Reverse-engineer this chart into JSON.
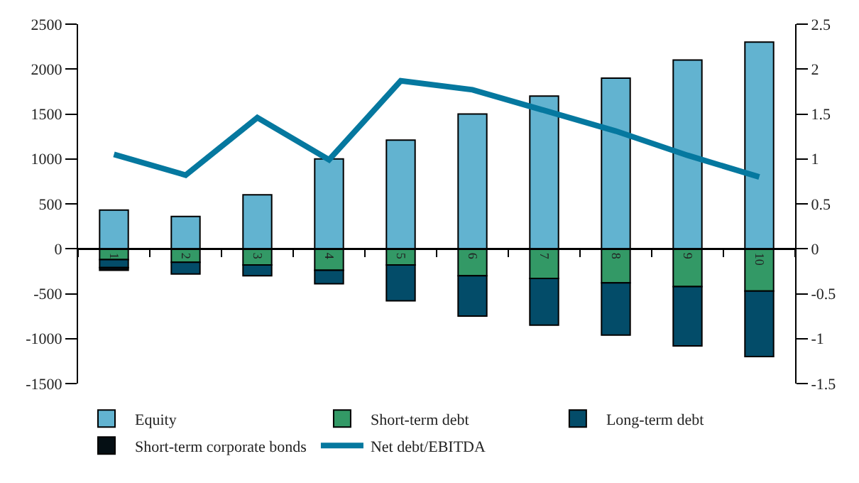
{
  "chart_data": {
    "type": "bar",
    "stacked": true,
    "categories": [
      "1",
      "2",
      "3",
      "4",
      "5",
      "6",
      "7",
      "8",
      "9",
      "10"
    ],
    "series": [
      {
        "name": "Equity",
        "color": "#62b3d0",
        "values": [
          430,
          360,
          600,
          1000,
          1210,
          1500,
          1700,
          1900,
          2100,
          2300
        ]
      },
      {
        "name": "Short-term debt",
        "color": "#339966",
        "values": [
          -120,
          -150,
          -180,
          -240,
          -180,
          -300,
          -330,
          -380,
          -420,
          -470
        ]
      },
      {
        "name": "Long-term debt",
        "color": "#034c69",
        "values": [
          -90,
          -130,
          -120,
          -150,
          -400,
          -450,
          -520,
          -580,
          -660,
          -730
        ]
      },
      {
        "name": "Short-term corporate bonds",
        "color": "#050f14",
        "values": [
          -30,
          null,
          null,
          null,
          null,
          null,
          null,
          null,
          null,
          null
        ]
      },
      {
        "name": "Net debt/EBITDA",
        "type": "line",
        "axis": "y2",
        "color": "#05789f",
        "values": [
          1.05,
          0.82,
          1.46,
          0.99,
          1.87,
          1.77,
          1.54,
          1.31,
          1.04,
          0.8
        ]
      }
    ],
    "ylim": [
      -1500,
      2500
    ],
    "yticks": [
      -1500,
      -1000,
      -500,
      0,
      500,
      1000,
      1500,
      2000,
      2500
    ],
    "y2lim": [
      -1.5,
      2.5
    ],
    "y2ticks": [
      -1.5,
      -1,
      -0.5,
      0,
      0.5,
      1,
      1.5,
      2,
      2.5
    ],
    "grid": false,
    "legend": "bottom",
    "marker": "none",
    "line_style": "solid"
  }
}
